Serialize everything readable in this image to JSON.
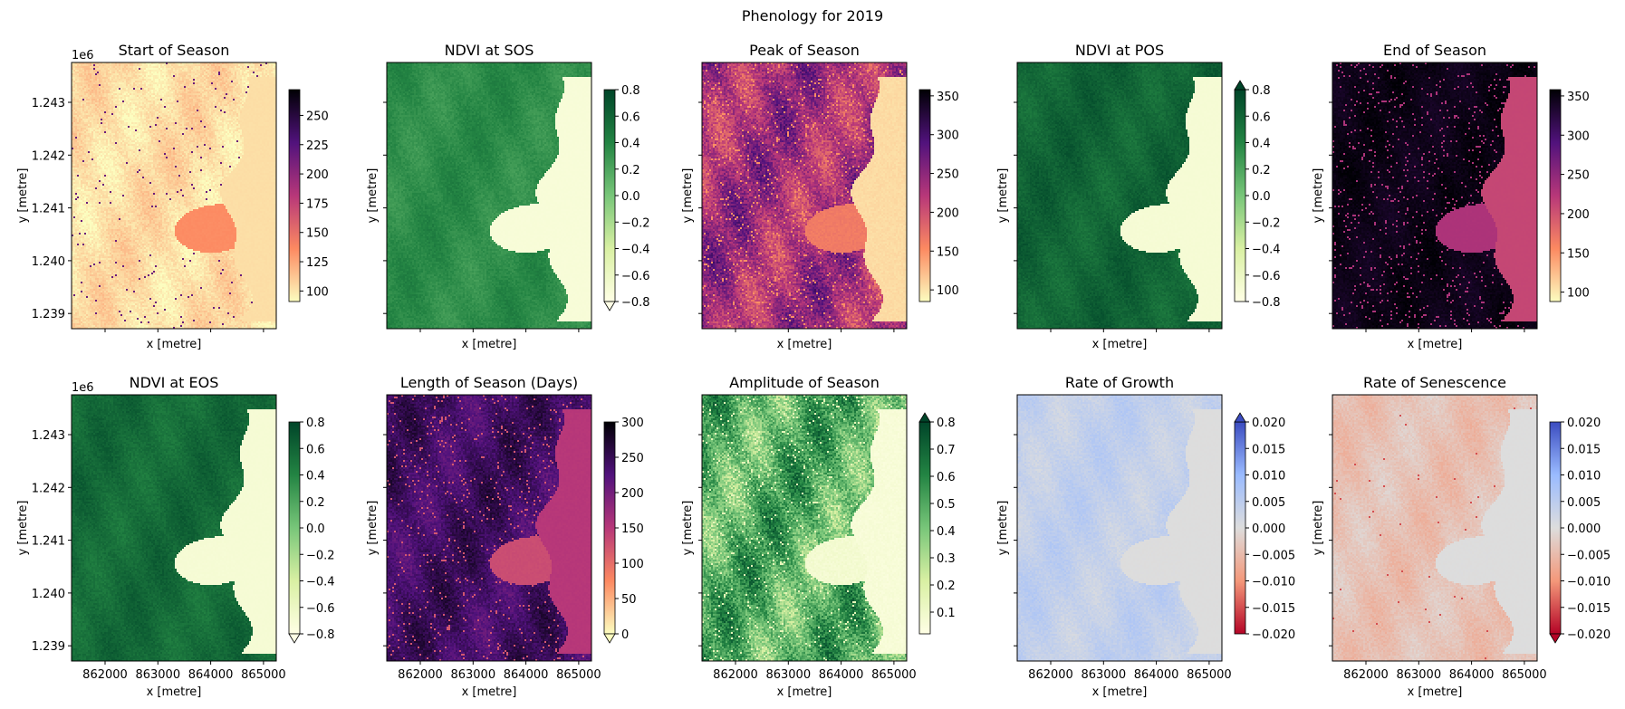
{
  "figure": {
    "suptitle": "Phenology for 2019"
  },
  "shared_axes": {
    "xticks": [
      "862000",
      "863000",
      "864000",
      "865000"
    ],
    "yticks": [
      "1.243",
      "1.242",
      "1.241",
      "1.240",
      "1.239"
    ],
    "y_offset_label": "1e6",
    "xlabel": "x [metre]",
    "ylabel": "y [metre]"
  },
  "chart_data": [
    {
      "type": "heatmap",
      "title": "Start of Season",
      "colorbar": {
        "cmap": "magma_r",
        "colors": [
          "#fcfdbf",
          "#fc8961",
          "#b73779",
          "#51127c",
          "#000004"
        ],
        "range": [
          91,
          272
        ],
        "extend": "neither",
        "tick_labels": [
          "100",
          "125",
          "150",
          "175",
          "200",
          "225",
          "250"
        ]
      }
    },
    {
      "type": "heatmap",
      "title": "NDVI at SOS",
      "colorbar": {
        "cmap": "YlGn",
        "colors": [
          "#ffffe5",
          "#d9f0a3",
          "#78c679",
          "#238443",
          "#004529"
        ],
        "range": [
          -0.8,
          0.8
        ],
        "extend": "min",
        "tick_labels": [
          "−0.8",
          "−0.6",
          "−0.4",
          "−0.2",
          "0.0",
          "0.2",
          "0.4",
          "0.6",
          "0.8"
        ]
      }
    },
    {
      "type": "heatmap",
      "title": "Peak of Season",
      "colorbar": {
        "cmap": "magma_r",
        "colors": [
          "#fcfdbf",
          "#fc8961",
          "#b73779",
          "#51127c",
          "#000004"
        ],
        "range": [
          85,
          358
        ],
        "extend": "neither",
        "tick_labels": [
          "100",
          "150",
          "200",
          "250",
          "300",
          "350"
        ]
      }
    },
    {
      "type": "heatmap",
      "title": "NDVI at POS",
      "colorbar": {
        "cmap": "YlGn",
        "colors": [
          "#ffffe5",
          "#d9f0a3",
          "#78c679",
          "#238443",
          "#004529"
        ],
        "range": [
          -0.8,
          0.8
        ],
        "extend": "max",
        "tick_labels": [
          "−0.8",
          "−0.6",
          "−0.4",
          "−0.2",
          "0.0",
          "0.2",
          "0.4",
          "0.6",
          "0.8"
        ]
      }
    },
    {
      "type": "heatmap",
      "title": "End of Season",
      "colorbar": {
        "cmap": "magma_r",
        "colors": [
          "#fcfdbf",
          "#fc8961",
          "#b73779",
          "#51127c",
          "#000004"
        ],
        "range": [
          88,
          358
        ],
        "extend": "neither",
        "tick_labels": [
          "100",
          "150",
          "200",
          "250",
          "300",
          "350"
        ]
      }
    },
    {
      "type": "heatmap",
      "title": "NDVI at EOS",
      "colorbar": {
        "cmap": "YlGn",
        "colors": [
          "#ffffe5",
          "#d9f0a3",
          "#78c679",
          "#238443",
          "#004529"
        ],
        "range": [
          -0.8,
          0.8
        ],
        "extend": "min",
        "tick_labels": [
          "−0.8",
          "−0.6",
          "−0.4",
          "−0.2",
          "0.0",
          "0.2",
          "0.4",
          "0.6",
          "0.8"
        ]
      }
    },
    {
      "type": "heatmap",
      "title": "Length of Season (Days)",
      "colorbar": {
        "cmap": "magma_r",
        "colors": [
          "#fcfdbf",
          "#fc8961",
          "#b73779",
          "#51127c",
          "#000004"
        ],
        "range": [
          0,
          300
        ],
        "extend": "min",
        "tick_labels": [
          "0",
          "50",
          "100",
          "150",
          "200",
          "250",
          "300"
        ]
      }
    },
    {
      "type": "heatmap",
      "title": "Amplitude of Season",
      "colorbar": {
        "cmap": "YlGn",
        "colors": [
          "#ffffe5",
          "#d9f0a3",
          "#78c679",
          "#238443",
          "#004529"
        ],
        "range": [
          0.02,
          0.8
        ],
        "extend": "max",
        "tick_labels": [
          "0.1",
          "0.2",
          "0.3",
          "0.4",
          "0.5",
          "0.6",
          "0.7",
          "0.8"
        ]
      }
    },
    {
      "type": "heatmap",
      "title": "Rate of Growth",
      "colorbar": {
        "cmap": "coolwarm_r",
        "colors": [
          "#b40426",
          "#f4987a",
          "#dddddd",
          "#9abbff",
          "#3b4cc0"
        ],
        "range": [
          -0.02,
          0.02
        ],
        "extend": "max",
        "tick_labels": [
          "−0.020",
          "−0.015",
          "−0.010",
          "−0.005",
          "0.000",
          "0.005",
          "0.010",
          "0.015",
          "0.020"
        ]
      }
    },
    {
      "type": "heatmap",
      "title": "Rate of Senescence",
      "colorbar": {
        "cmap": "coolwarm_r",
        "colors": [
          "#b40426",
          "#f4987a",
          "#dddddd",
          "#9abbff",
          "#3b4cc0"
        ],
        "range": [
          -0.02,
          0.02
        ],
        "extend": "min",
        "tick_labels": [
          "−0.020",
          "−0.015",
          "−0.010",
          "−0.005",
          "0.000",
          "0.005",
          "0.010",
          "0.015",
          "0.020"
        ]
      }
    }
  ]
}
